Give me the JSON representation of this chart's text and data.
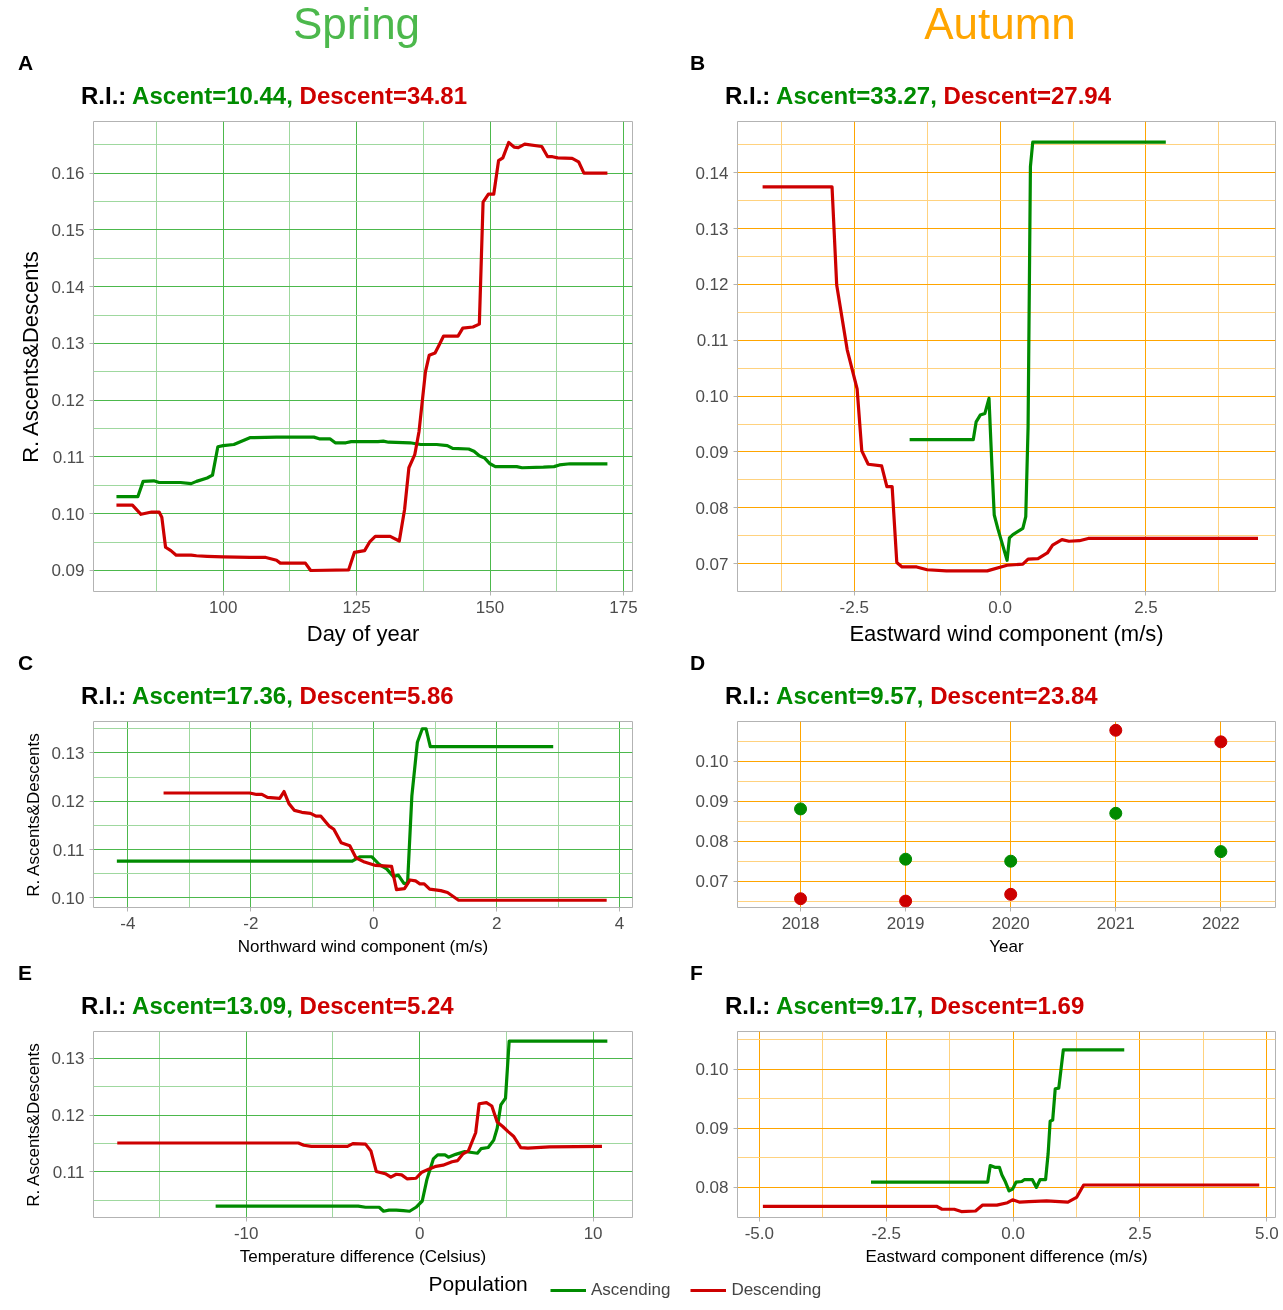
{
  "chart_data": [
    {
      "type": "line",
      "title": "R.I.: Ascent=10.44, Descent=34.81",
      "xlabel": "Day of year",
      "ylabel": "R. Ascents&Descents",
      "annotations": [
        "A",
        "Spring"
      ],
      "grid": true,
      "xlim": [
        75.7,
        176.7
      ],
      "ylim": [
        0.0863,
        0.1691
      ],
      "xticks": [
        100,
        125,
        150,
        175,
        {
          "value": 87.5,
          "label": null
        },
        {
          "value": 112.5,
          "label": null
        },
        {
          "value": 137.5,
          "label": null
        },
        {
          "value": 162.5,
          "label": null
        }
      ],
      "yticks": [
        0.09,
        {
          "value": 0.1,
          "label": "0.10"
        },
        0.11,
        0.12,
        0.13,
        0.14,
        0.15,
        0.16,
        {
          "value": 0.095,
          "label": null
        },
        {
          "value": 0.105,
          "label": null
        },
        {
          "value": 0.115,
          "label": null
        },
        {
          "value": 0.125,
          "label": null
        },
        {
          "value": 0.135,
          "label": null
        },
        {
          "value": 0.145,
          "label": null
        },
        {
          "value": 0.155,
          "label": null
        },
        {
          "value": 0.165,
          "label": null
        }
      ],
      "series": [
        {
          "color": "#008b00",
          "x": [
            80,
            84,
            85,
            87,
            88,
            92,
            94,
            95,
            97,
            98,
            99,
            100,
            102,
            104,
            105,
            110,
            117,
            118,
            120,
            121,
            123,
            124,
            129,
            130,
            131,
            135,
            137,
            140,
            142,
            143,
            146,
            147,
            148,
            149,
            150,
            151,
            155,
            156,
            160,
            162,
            163,
            165,
            172
          ],
          "values": [
            0.103,
            0.103,
            0.1057,
            0.1058,
            0.1055,
            0.1055,
            0.1053,
            0.1057,
            0.1063,
            0.1068,
            0.1118,
            0.112,
            0.1122,
            0.113,
            0.1134,
            0.1135,
            0.1135,
            0.1132,
            0.1132,
            0.1125,
            0.1125,
            0.1127,
            0.1127,
            0.1128,
            0.1126,
            0.1125,
            0.1122,
            0.1122,
            0.112,
            0.1115,
            0.1114,
            0.111,
            0.1102,
            0.1098,
            0.1088,
            0.1083,
            0.1083,
            0.1081,
            0.1082,
            0.1083,
            0.1086,
            0.1088,
            0.1088
          ]
        },
        {
          "color": "#cd0000",
          "x": [
            80,
            83,
            84.6,
            86.6,
            88,
            88.5,
            89.2,
            90.2,
            91.2,
            94,
            95,
            97,
            100,
            105,
            108,
            110,
            110.7,
            115.4,
            116.4,
            123.5,
            124.6,
            126.5,
            127.5,
            128.5,
            131.3,
            133,
            134,
            134.8,
            135.9,
            136.7,
            137.9,
            138.6,
            139.7,
            140.4,
            141.3,
            144,
            144.9,
            146.8,
            148,
            148.7,
            149.7,
            150.7,
            151.6,
            152.4,
            153.5,
            154.5,
            155.3,
            156.5,
            159.7,
            160.8,
            161.7,
            162.7,
            165.4,
            166.6,
            167.6,
            172
          ],
          "values": [
            0.1015,
            0.1015,
            0.0999,
            0.1003,
            0.1003,
            0.0994,
            0.0941,
            0.0935,
            0.0927,
            0.0927,
            0.0926,
            0.0925,
            0.0924,
            0.0923,
            0.0923,
            0.0918,
            0.0913,
            0.0913,
            0.09,
            0.0901,
            0.0932,
            0.0935,
            0.0951,
            0.096,
            0.096,
            0.0952,
            0.1008,
            0.1081,
            0.1104,
            0.1145,
            0.125,
            0.1279,
            0.1283,
            0.1296,
            0.1313,
            0.1313,
            0.1327,
            0.1329,
            0.1334,
            0.1549,
            0.1563,
            0.1563,
            0.1622,
            0.1627,
            0.1654,
            0.1646,
            0.1645,
            0.1651,
            0.1647,
            0.1629,
            0.1629,
            0.1627,
            0.1626,
            0.162,
            0.16,
            0.16
          ]
        }
      ]
    },
    {
      "type": "line",
      "title": "R.I.: Ascent=33.27, Descent=27.94",
      "xlabel": "Eastward wind component (m/s)",
      "annotations": [
        "B",
        "Autumn"
      ],
      "grid": true,
      "xlim": [
        -4.5,
        4.72
      ],
      "ylim": [
        0.065,
        0.1492
      ],
      "xticks": [
        -2.5,
        {
          "value": 0,
          "label": "0.0"
        },
        2.5,
        {
          "value": -3.75,
          "label": null
        },
        {
          "value": -1.25,
          "label": null
        },
        {
          "value": 1.25,
          "label": null
        },
        {
          "value": 3.75,
          "label": null
        }
      ],
      "yticks": [
        0.07,
        0.08,
        0.09,
        {
          "value": 0.1,
          "label": "0.10"
        },
        0.11,
        0.12,
        0.13,
        0.14,
        {
          "value": 0.075,
          "label": null
        },
        {
          "value": 0.085,
          "label": null
        },
        {
          "value": 0.095,
          "label": null
        },
        {
          "value": 0.105,
          "label": null
        },
        {
          "value": 0.115,
          "label": null
        },
        {
          "value": 0.125,
          "label": null
        },
        {
          "value": 0.135,
          "label": null
        },
        {
          "value": 0.145,
          "label": null
        }
      ],
      "series": [
        {
          "color": "#008b00",
          "x": [
            -1.55,
            -0.46,
            -0.41,
            -0.34,
            -0.26,
            -0.19,
            -0.14,
            -0.1,
            -0.04,
            0.12,
            0.16,
            0.22,
            0.39,
            0.44,
            0.48,
            0.52,
            0.56,
            2.84
          ],
          "values": [
            0.0922,
            0.0922,
            0.0954,
            0.0966,
            0.0969,
            0.0996,
            0.0875,
            0.0787,
            0.0763,
            0.0706,
            0.0746,
            0.0752,
            0.0763,
            0.0784,
            0.0945,
            0.1411,
            0.1455,
            0.1455
          ]
        },
        {
          "color": "#cd0000",
          "x": [
            -4.07,
            -2.88,
            -2.8,
            -2.62,
            -2.45,
            -2.37,
            -2.26,
            -2.03,
            -1.94,
            -1.85,
            -1.77,
            -1.68,
            -1.43,
            -1.25,
            -0.92,
            -0.22,
            0.12,
            0.39,
            0.48,
            0.65,
            0.81,
            0.9,
            1.06,
            1.18,
            1.36,
            1.51,
            4.42
          ],
          "values": [
            0.1375,
            0.1375,
            0.1199,
            0.1083,
            0.1013,
            0.0902,
            0.0878,
            0.0875,
            0.0838,
            0.0838,
            0.0702,
            0.0694,
            0.0694,
            0.0689,
            0.0687,
            0.0687,
            0.0697,
            0.0699,
            0.0708,
            0.0709,
            0.0719,
            0.0733,
            0.0743,
            0.074,
            0.0741,
            0.0745,
            0.0745
          ]
        }
      ]
    },
    {
      "type": "line",
      "title": "R.I.: Ascent=17.36, Descent=5.86",
      "xlabel": "Northward wind component (m/s)",
      "ylabel": "R. Ascents&Descents",
      "annotations": [
        "C"
      ],
      "grid": true,
      "xlim": [
        -4.56,
        4.21
      ],
      "ylim": [
        0.098,
        0.1365
      ],
      "xticks": [
        -4,
        -2,
        0,
        2,
        4,
        {
          "value": -3,
          "label": null
        },
        {
          "value": -1,
          "label": null
        },
        {
          "value": 1,
          "label": null
        },
        {
          "value": 3,
          "label": null
        }
      ],
      "yticks": [
        {
          "value": 0.1,
          "label": "0.10"
        },
        0.11,
        0.12,
        0.13,
        {
          "value": 0.105,
          "label": null
        },
        {
          "value": 0.115,
          "label": null
        },
        {
          "value": 0.125,
          "label": null
        },
        {
          "value": 0.135,
          "label": null
        }
      ],
      "series": [
        {
          "color": "#008b00",
          "x": [
            -4.18,
            -0.35,
            -0.23,
            -0.03,
            0.09,
            0.21,
            0.32,
            0.4,
            0.49,
            0.55,
            0.62,
            0.71,
            0.79,
            0.85,
            0.92,
            2.92
          ],
          "values": [
            0.1076,
            0.1076,
            0.1085,
            0.1085,
            0.1069,
            0.106,
            0.1044,
            0.1047,
            0.103,
            0.103,
            0.1211,
            0.1322,
            0.135,
            0.135,
            0.1313,
            0.1313
          ]
        },
        {
          "color": "#cd0000",
          "x": [
            -3.42,
            -2.02,
            -1.91,
            -1.82,
            -1.73,
            -1.53,
            -1.46,
            -1.38,
            -1.29,
            -1.17,
            -1.03,
            -0.94,
            -0.86,
            -0.73,
            -0.65,
            -0.53,
            -0.39,
            -0.29,
            -0.15,
            0.03,
            0.29,
            0.37,
            0.5,
            0.59,
            0.68,
            0.75,
            0.82,
            0.91,
            1.09,
            1.2,
            1.38,
            3.79
          ],
          "values": [
            0.1217,
            0.1217,
            0.1214,
            0.1214,
            0.1208,
            0.1206,
            0.122,
            0.1195,
            0.1181,
            0.1177,
            0.1175,
            0.1169,
            0.1169,
            0.1149,
            0.1142,
            0.1114,
            0.1108,
            0.1083,
            0.1074,
            0.1067,
            0.1065,
            0.1017,
            0.1019,
            0.1037,
            0.1035,
            0.1029,
            0.1029,
            0.1018,
            0.1015,
            0.1011,
            0.0995,
            0.0995
          ]
        }
      ]
    },
    {
      "type": "scatter",
      "title": "R.I.: Ascent=9.57, Descent=23.84",
      "xlabel": "Year",
      "annotations": [
        "D"
      ],
      "grid": true,
      "marker": "circle",
      "categories": [
        "2018",
        "2019",
        "2020",
        "2021",
        "2022"
      ],
      "ylim": [
        0.0634,
        0.11
      ],
      "yticks": [
        0.07,
        0.08,
        0.09,
        {
          "value": 0.1,
          "label": "0.10"
        },
        {
          "value": 0.065,
          "label": null
        },
        {
          "value": 0.075,
          "label": null
        },
        {
          "value": 0.085,
          "label": null
        },
        {
          "value": 0.095,
          "label": null
        },
        {
          "value": 0.105,
          "label": null
        }
      ],
      "series": [
        {
          "color": "#008b00",
          "values": [
            0.0881,
            0.0755,
            0.075,
            0.087,
            0.0774
          ]
        },
        {
          "color": "#cd0000",
          "values": [
            0.0656,
            0.065,
            0.0667,
            0.1078,
            0.1049
          ]
        }
      ]
    },
    {
      "type": "line",
      "title": "R.I.: Ascent=13.09, Descent=5.24",
      "xlabel": "Temperature difference (Celsius)",
      "ylabel": "R. Ascents&Descents",
      "annotations": [
        "E"
      ],
      "grid": true,
      "legend": "bottom",
      "legend_title": "Population",
      "xlim": [
        -18.8,
        12.27
      ],
      "ylim": [
        0.102,
        0.1347
      ],
      "xticks": [
        -10,
        0,
        10,
        {
          "value": -15,
          "label": null
        },
        {
          "value": -5,
          "label": null
        },
        {
          "value": 5,
          "label": null
        }
      ],
      "yticks": [
        0.11,
        0.12,
        0.13,
        {
          "value": 0.105,
          "label": null
        },
        {
          "value": 0.115,
          "label": null
        },
        {
          "value": 0.125,
          "label": null
        }
      ],
      "series": [
        {
          "name": "Ascending",
          "color": "#008b00",
          "x": [
            -11.76,
            -3.54,
            -3.12,
            -2.33,
            -2.08,
            -1.77,
            -1.35,
            -0.94,
            -0.58,
            -0.21,
            0.15,
            0.42,
            0.79,
            1.04,
            1.46,
            1.66,
            2.08,
            2.6,
            3.33,
            3.54,
            3.95,
            4.27,
            4.47,
            4.68,
            4.95,
            5.16,
            10.82
          ],
          "values": [
            0.104,
            0.104,
            0.1038,
            0.1038,
            0.1031,
            0.1033,
            0.1033,
            0.1032,
            0.1031,
            0.1038,
            0.1049,
            0.1087,
            0.1123,
            0.113,
            0.113,
            0.1126,
            0.1131,
            0.1136,
            0.1133,
            0.1141,
            0.1143,
            0.1156,
            0.1177,
            0.1218,
            0.123,
            0.133,
            0.133
          ]
        },
        {
          "name": "Descending",
          "color": "#cd0000",
          "x": [
            -17.43,
            -6.99,
            -6.68,
            -6.24,
            -4.16,
            -3.85,
            -3.12,
            -2.81,
            -2.5,
            -1.98,
            -1.66,
            -1.35,
            -1.04,
            -0.73,
            -0.21,
            0.1,
            0.52,
            0.94,
            1.35,
            1.87,
            2.19,
            2.5,
            2.81,
            3.23,
            3.43,
            3.85,
            4.16,
            4.47,
            4.79,
            5.1,
            5.41,
            5.83,
            6.24,
            7.49,
            10.51
          ],
          "values": [
            0.1151,
            0.1151,
            0.1147,
            0.1145,
            0.1145,
            0.115,
            0.1149,
            0.1137,
            0.1101,
            0.1097,
            0.1091,
            0.1096,
            0.1095,
            0.1088,
            0.1089,
            0.1099,
            0.1105,
            0.111,
            0.1112,
            0.1118,
            0.112,
            0.1132,
            0.1137,
            0.1169,
            0.122,
            0.1222,
            0.1216,
            0.1188,
            0.118,
            0.1171,
            0.1163,
            0.1143,
            0.1142,
            0.1144,
            0.1145
          ]
        }
      ]
    },
    {
      "type": "line",
      "title": "R.I.: Ascent=9.17, Descent=1.69",
      "xlabel": "Eastward component difference (m/s)",
      "annotations": [
        "F"
      ],
      "grid": true,
      "xlim": [
        -5.43,
        5.17
      ],
      "ylim": [
        0.0749,
        0.1064
      ],
      "xticks": [
        {
          "value": -5,
          "label": "-5.0"
        },
        -2.5,
        {
          "value": 0,
          "label": "0.0"
        },
        2.5,
        {
          "value": 5,
          "label": "5.0"
        },
        {
          "value": -3.75,
          "label": null
        },
        {
          "value": -1.25,
          "label": null
        },
        {
          "value": 1.25,
          "label": null
        },
        {
          "value": 3.75,
          "label": null
        }
      ],
      "yticks": [
        0.08,
        0.09,
        {
          "value": 0.1,
          "label": "0.10"
        },
        {
          "value": 0.085,
          "label": null
        },
        {
          "value": 0.095,
          "label": null
        },
        {
          "value": 0.105,
          "label": null
        }
      ],
      "series": [
        {
          "color": "#008b00",
          "x": [
            -2.8,
            -0.5,
            -0.45,
            -0.36,
            -0.27,
            -0.22,
            -0.15,
            -0.08,
            -0.01,
            0.06,
            0.17,
            0.22,
            0.38,
            0.46,
            0.53,
            0.64,
            0.69,
            0.73,
            0.78,
            0.83,
            0.9,
            0.99,
            2.19
          ],
          "values": [
            0.0809,
            0.0809,
            0.0837,
            0.0834,
            0.0834,
            0.0821,
            0.0809,
            0.0794,
            0.0797,
            0.0809,
            0.081,
            0.0813,
            0.0813,
            0.08,
            0.0813,
            0.0813,
            0.0857,
            0.0912,
            0.0914,
            0.0967,
            0.0968,
            0.1033,
            0.1033
          ]
        },
        {
          "color": "#cd0000",
          "x": [
            -4.93,
            -1.51,
            -1.4,
            -1.16,
            -1.02,
            -0.74,
            -0.6,
            -0.32,
            -0.11,
            -0.01,
            0.13,
            0.31,
            0.66,
            1.08,
            1.25,
            1.39,
            4.85
          ],
          "values": [
            0.0768,
            0.0768,
            0.0763,
            0.0763,
            0.0759,
            0.076,
            0.077,
            0.077,
            0.0774,
            0.0779,
            0.0775,
            0.0776,
            0.0777,
            0.0775,
            0.0783,
            0.0804,
            0.0804
          ]
        }
      ]
    }
  ]
}
